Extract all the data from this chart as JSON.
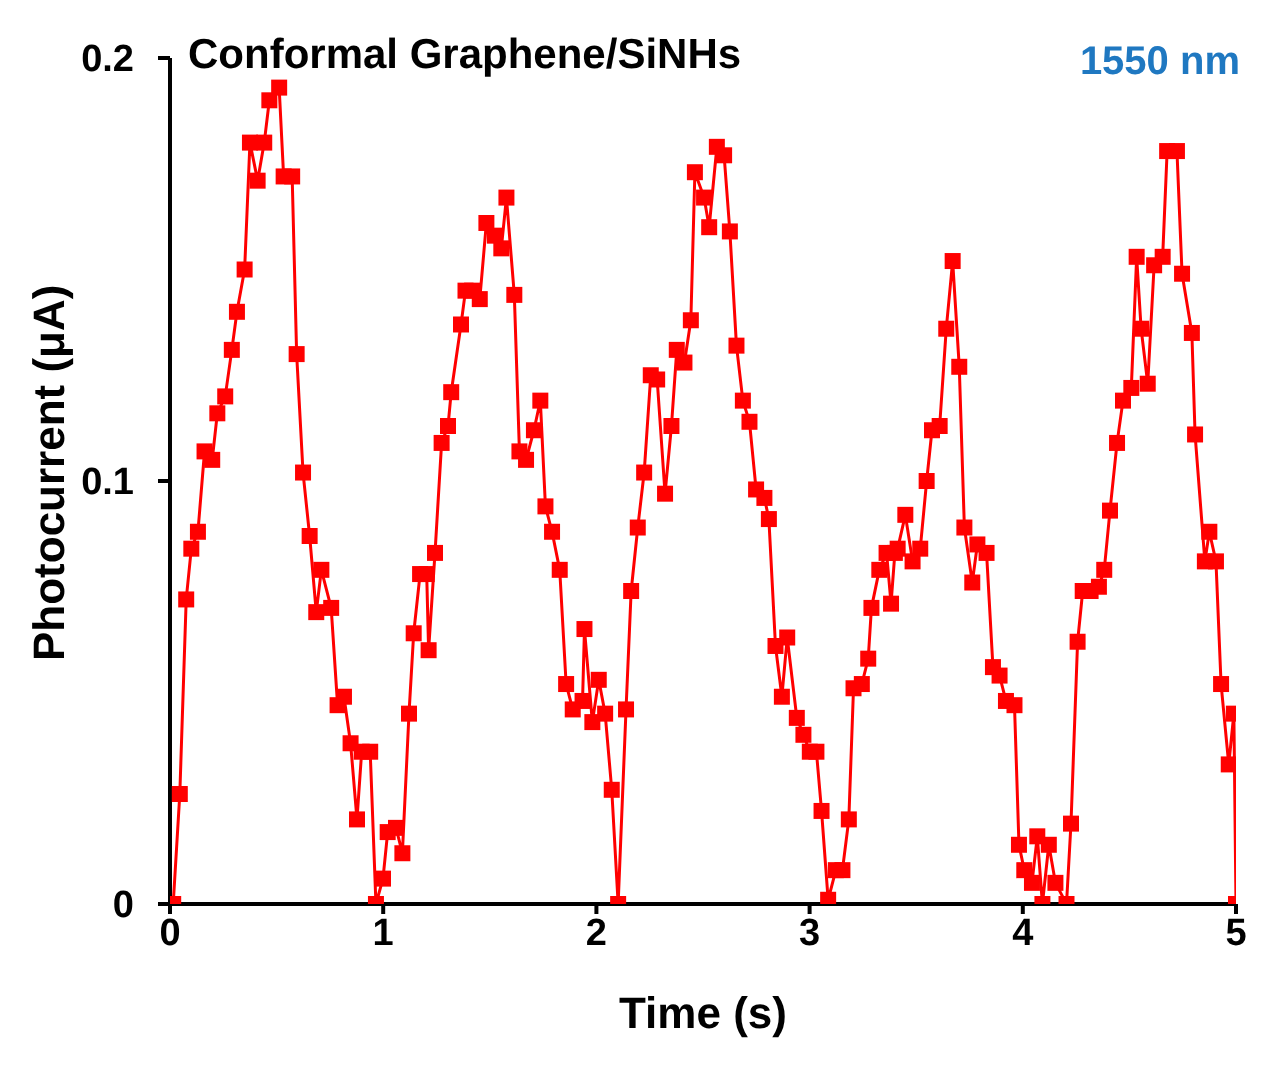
{
  "chart_data": {
    "type": "line",
    "title": "Conformal Graphene/SiNHs",
    "xlabel": "Time  (s)",
    "ylabel": "Photocurrent  (μA)",
    "annotations": [
      "1550 nm"
    ],
    "x": [
      0.015,
      0.046,
      0.076,
      0.1,
      0.131,
      0.162,
      0.198,
      0.222,
      0.259,
      0.29,
      0.314,
      0.35,
      0.375,
      0.411,
      0.442,
      0.466,
      0.512,
      0.533,
      0.573,
      0.594,
      0.624,
      0.655,
      0.686,
      0.71,
      0.756,
      0.786,
      0.816,
      0.847,
      0.877,
      0.899,
      0.939,
      0.966,
      0.999,
      1.021,
      1.06,
      1.09,
      1.121,
      1.143,
      1.173,
      1.204,
      1.213,
      1.243,
      1.274,
      1.304,
      1.319,
      1.365,
      1.386,
      1.417,
      1.453,
      1.484,
      1.524,
      1.554,
      1.578,
      1.615,
      1.639,
      1.67,
      1.707,
      1.737,
      1.761,
      1.792,
      1.828,
      1.858,
      1.889,
      1.935,
      1.944,
      1.981,
      2.011,
      2.041,
      2.072,
      2.102,
      2.139,
      2.163,
      2.194,
      2.224,
      2.255,
      2.285,
      2.322,
      2.352,
      2.377,
      2.413,
      2.443,
      2.462,
      2.505,
      2.529,
      2.565,
      2.599,
      2.626,
      2.657,
      2.687,
      2.718,
      2.749,
      2.788,
      2.809,
      2.84,
      2.87,
      2.895,
      2.94,
      2.971,
      3.001,
      3.032,
      3.056,
      3.087,
      3.123,
      3.154,
      3.184,
      3.206,
      3.245,
      3.275,
      3.29,
      3.327,
      3.361,
      3.382,
      3.4,
      3.413,
      3.449,
      3.483,
      3.519,
      3.549,
      3.574,
      3.61,
      3.641,
      3.671,
      3.702,
      3.726,
      3.763,
      3.787,
      3.83,
      3.86,
      3.891,
      3.921,
      3.961,
      3.982,
      4.007,
      4.043,
      4.068,
      4.092,
      4.122,
      4.153,
      4.205,
      4.226,
      4.257,
      4.281,
      4.318,
      4.357,
      4.382,
      4.409,
      4.442,
      4.47,
      4.509,
      4.534,
      4.555,
      4.586,
      4.616,
      4.656,
      4.677,
      4.723,
      4.747,
      4.793,
      4.808,
      4.854,
      4.875,
      4.906,
      4.93,
      4.966,
      4.99,
      5.0
    ],
    "series": [
      {
        "color": "#ff0000",
        "values": [
          0.0,
          0.026,
          0.072,
          0.084,
          0.088,
          0.107,
          0.105,
          0.116,
          0.12,
          0.131,
          0.14,
          0.15,
          0.18,
          0.171,
          0.18,
          0.19,
          0.193,
          0.172,
          0.172,
          0.13,
          0.102,
          0.087,
          0.069,
          0.079,
          0.07,
          0.047,
          0.049,
          0.038,
          0.02,
          0.036,
          0.036,
          0.0,
          0.006,
          0.017,
          0.018,
          0.012,
          0.045,
          0.064,
          0.078,
          0.078,
          0.06,
          0.083,
          0.109,
          0.113,
          0.121,
          0.137,
          0.145,
          0.145,
          0.143,
          0.161,
          0.158,
          0.155,
          0.167,
          0.144,
          0.107,
          0.105,
          0.112,
          0.119,
          0.094,
          0.088,
          0.079,
          0.052,
          0.046,
          0.048,
          0.065,
          0.043,
          0.053,
          0.045,
          0.027,
          0.0,
          0.046,
          0.074,
          0.089,
          0.102,
          0.125,
          0.124,
          0.097,
          0.113,
          0.131,
          0.128,
          0.138,
          0.173,
          0.167,
          0.16,
          0.179,
          0.177,
          0.159,
          0.132,
          0.119,
          0.114,
          0.098,
          0.096,
          0.091,
          0.061,
          0.049,
          0.063,
          0.044,
          0.04,
          0.036,
          0.036,
          0.022,
          0.001,
          0.008,
          0.008,
          0.02,
          0.051,
          0.052,
          0.058,
          0.07,
          0.079,
          0.083,
          0.071,
          0.083,
          0.084,
          0.092,
          0.081,
          0.084,
          0.1,
          0.112,
          0.113,
          0.136,
          0.152,
          0.127,
          0.089,
          0.076,
          0.085,
          0.083,
          0.056,
          0.054,
          0.048,
          0.047,
          0.014,
          0.008,
          0.005,
          0.016,
          0.0,
          0.014,
          0.005,
          0.0,
          0.019,
          0.062,
          0.074,
          0.074,
          0.075,
          0.079,
          0.093,
          0.109,
          0.119,
          0.122,
          0.153,
          0.136,
          0.123,
          0.151,
          0.153,
          0.178,
          0.178,
          0.149,
          0.135,
          0.111,
          0.081,
          0.088,
          0.081,
          0.052,
          0.033,
          0.045,
          0.0
        ]
      }
    ],
    "xlim": [
      0,
      5
    ],
    "xticks": [
      0,
      1,
      2,
      3,
      4,
      5
    ],
    "ylim": [
      0,
      0.2
    ],
    "yticks": [
      0,
      0.1,
      0.2
    ],
    "grid": false,
    "marker": "square",
    "line_style": "solid"
  }
}
